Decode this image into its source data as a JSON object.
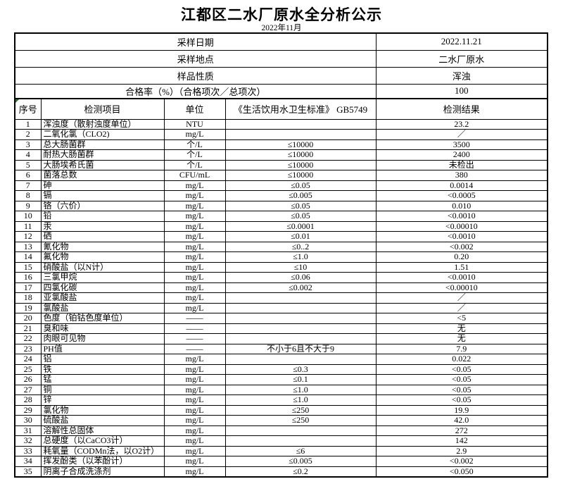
{
  "title": "江都区二水厂原水全分析公示",
  "subtitle": "2022年11月",
  "info_rows": [
    {
      "label": "采样日期",
      "value": "2022.11.21"
    },
    {
      "label": "采样地点",
      "value": "二水厂原水"
    },
    {
      "label": "样品性质",
      "value": "浑浊"
    },
    {
      "label": "合格率（%）（合格项次／总项次）",
      "value": "100"
    }
  ],
  "columns": [
    "序号",
    "检测项目",
    "单位",
    "《生活饮用水卫生标准》 GB5749",
    "检测结果"
  ],
  "rows": [
    {
      "no": "1",
      "item": "浑浊度（散射浊度单位）",
      "unit": "NTU",
      "standard": "",
      "result": "23.2"
    },
    {
      "no": "2",
      "item": "二氧化氯（CLO2)",
      "unit": "mg/L",
      "standard": "",
      "result": "／"
    },
    {
      "no": "3",
      "item": "总大肠菌群",
      "unit": "个/L",
      "standard": "≤10000",
      "result": "3500"
    },
    {
      "no": "4",
      "item": "耐热大肠菌群",
      "unit": "个/L",
      "standard": "≤10000",
      "result": "2400"
    },
    {
      "no": "5",
      "item": "大肠埃希氏菌",
      "unit": "个/L",
      "standard": "≤10000",
      "result": "未检出"
    },
    {
      "no": "6",
      "item": "菌落总数",
      "unit": "CFU/mL",
      "standard": "≤10000",
      "result": "380"
    },
    {
      "no": "7",
      "item": "砷",
      "unit": "mg/L",
      "standard": "≤0.05",
      "result": "0.0014"
    },
    {
      "no": "8",
      "item": "镉",
      "unit": "mg/L",
      "standard": "≤0.005",
      "result": "<0.0005"
    },
    {
      "no": "9",
      "item": "铬（六价）",
      "unit": "mg/L",
      "standard": "≤0.05",
      "result": "0.010"
    },
    {
      "no": "10",
      "item": "铅",
      "unit": "mg/L",
      "standard": "≤0.05",
      "result": "<0.0010"
    },
    {
      "no": "11",
      "item": "汞",
      "unit": "mg/L",
      "standard": "≤0.0001",
      "result": "<0.00010"
    },
    {
      "no": "12",
      "item": "硒",
      "unit": "mg/L",
      "standard": "≤0.01",
      "result": "<0.0010"
    },
    {
      "no": "13",
      "item": "氰化物",
      "unit": "mg/L",
      "standard": "≤0..2",
      "result": "<0.002"
    },
    {
      "no": "14",
      "item": "氟化物",
      "unit": "mg/L",
      "standard": "≤1.0",
      "result": "0.20"
    },
    {
      "no": "15",
      "item": "硝酸盐（以N计）",
      "unit": "mg/L",
      "standard": "≤10",
      "result": "1.51"
    },
    {
      "no": "16",
      "item": "三氯甲烷",
      "unit": "mg/L",
      "standard": "≤0.06",
      "result": "<0.0010"
    },
    {
      "no": "17",
      "item": "四氯化碳",
      "unit": "mg/L",
      "standard": "≤0.002",
      "result": "<0.00010"
    },
    {
      "no": "18",
      "item": "亚氯酸盐",
      "unit": "mg/L",
      "standard": "",
      "result": "／"
    },
    {
      "no": "19",
      "item": "氯酸盐",
      "unit": "mg/L",
      "standard": "",
      "result": "／"
    },
    {
      "no": "20",
      "item": "色度（铂钴色度单位）",
      "unit": "——",
      "standard": "",
      "result": "<5"
    },
    {
      "no": "21",
      "item": "臭和味",
      "unit": "——",
      "standard": "",
      "result": "无"
    },
    {
      "no": "22",
      "item": "肉眼可见物",
      "unit": "——",
      "standard": "",
      "result": "无"
    },
    {
      "no": "23",
      "item": "PH值",
      "unit": "——",
      "standard": "不小于6且不大于9",
      "result": "7.9"
    },
    {
      "no": "24",
      "item": "铝",
      "unit": "mg/L",
      "standard": "",
      "result": "0.022"
    },
    {
      "no": "25",
      "item": "铁",
      "unit": "mg/L",
      "standard": "≤0.3",
      "result": "<0.05"
    },
    {
      "no": "26",
      "item": "锰",
      "unit": "mg/L",
      "standard": "≤0.1",
      "result": "<0.05"
    },
    {
      "no": "27",
      "item": "铜",
      "unit": "mg/L",
      "standard": "≤1.0",
      "result": "<0.05"
    },
    {
      "no": "28",
      "item": "锌",
      "unit": "mg/L",
      "standard": "≤1.0",
      "result": "<0.05"
    },
    {
      "no": "29",
      "item": "氯化物",
      "unit": "mg/L",
      "standard": "≤250",
      "result": "19.9"
    },
    {
      "no": "30",
      "item": "硫酸盐",
      "unit": "mg/L",
      "standard": "≤250",
      "result": "42.0"
    },
    {
      "no": "31",
      "item": "溶解性总固体",
      "unit": "mg/L",
      "standard": "",
      "result": "272"
    },
    {
      "no": "32",
      "item": "总硬度（以CaCO3计）",
      "unit": "mg/L",
      "standard": "",
      "result": "142"
    },
    {
      "no": "33",
      "item": "耗氧量（CODMn法，以O2计）",
      "unit": "mg/L",
      "standard": "≤6",
      "result": "2.9"
    },
    {
      "no": "34",
      "item": "挥发酚类（以苯酚计）",
      "unit": "mg/L",
      "standard": "≤0.005",
      "result": "<0.002"
    },
    {
      "no": "35",
      "item": "阴离子合成洗涤剂",
      "unit": "mg/L",
      "standard": "≤0.2",
      "result": "<0.050"
    }
  ],
  "colors": {
    "text": "#000000",
    "border": "#000000",
    "error_indicator_green": "#1e7e1e"
  },
  "icons": {
    "corner_marker": "excel-error-indicator-triangle"
  }
}
